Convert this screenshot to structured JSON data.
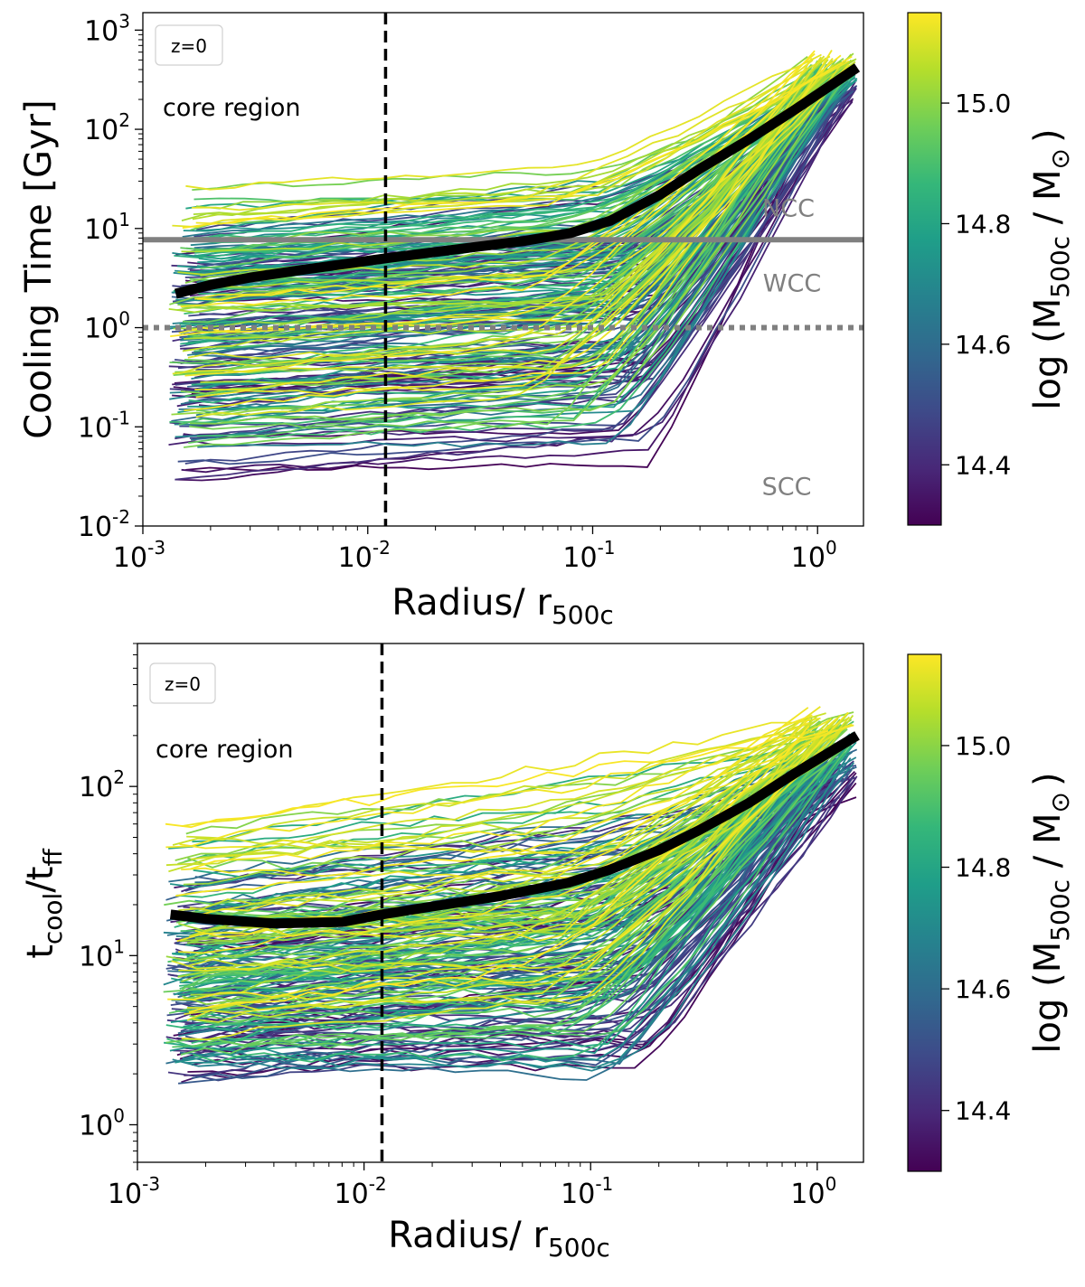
{
  "chart_data": [
    {
      "type": "line",
      "panel": "top",
      "ylabel": "Cooling Time [Gyr]",
      "xlabel_main": "Radius/ r",
      "xlabel_sub": "500c",
      "xscale": "log",
      "yscale": "log",
      "xlim": [
        0.001,
        1.6
      ],
      "ylim": [
        0.01,
        1500
      ],
      "x_ticks": [
        {
          "base": "10",
          "exp": "-3",
          "value": 0.001
        },
        {
          "base": "10",
          "exp": "-2",
          "value": 0.01
        },
        {
          "base": "10",
          "exp": "-1",
          "value": 0.1
        },
        {
          "base": "10",
          "exp": "0",
          "value": 1
        }
      ],
      "y_ticks": [
        {
          "base": "10",
          "exp": "-2",
          "value": 0.01
        },
        {
          "base": "10",
          "exp": "-1",
          "value": 0.1
        },
        {
          "base": "10",
          "exp": "0",
          "value": 1
        },
        {
          "base": "10",
          "exp": "1",
          "value": 10
        },
        {
          "base": "10",
          "exp": "2",
          "value": 100
        },
        {
          "base": "10",
          "exp": "3",
          "value": 1000
        }
      ],
      "legend_text": "z=0",
      "annotation": "core region",
      "region_labels": [
        {
          "text": "NCC",
          "y": 16
        },
        {
          "text": "WCC",
          "y": 2.8
        },
        {
          "text": "SCC",
          "y": 0.025
        }
      ],
      "hlines": [
        {
          "y": 7.7,
          "style": "solid",
          "color": "#808080"
        },
        {
          "y": 1.0,
          "style": "dotted",
          "color": "#808080"
        }
      ],
      "vline_x": 0.012,
      "median_line": {
        "x": [
          0.0014,
          0.002,
          0.003,
          0.005,
          0.008,
          0.012,
          0.02,
          0.03,
          0.05,
          0.08,
          0.12,
          0.2,
          0.3,
          0.5,
          0.8,
          1.5
        ],
        "y": [
          2.2,
          2.7,
          3.2,
          3.8,
          4.4,
          5.0,
          5.8,
          6.5,
          7.5,
          9.0,
          12,
          22,
          40,
          80,
          160,
          420
        ]
      },
      "profiles": {
        "count": 230,
        "x_start_range": [
          0.0013,
          0.0018
        ],
        "x_end_range": [
          0.9,
          1.5
        ],
        "inner_log_range": [
          -1.7,
          1.4
        ],
        "outer_log_range": [
          2.25,
          2.8
        ],
        "bend_x_range": [
          0.04,
          0.2
        ],
        "inner_slope_range": [
          0.0,
          0.3
        ]
      },
      "colorbar": {
        "label_pre": "log (M",
        "label_sub": "500c",
        "label_mid": " / M",
        "label_sub2": "⊙",
        "label_post": ")",
        "range": [
          14.3,
          15.15
        ],
        "ticks": [
          "14.4",
          "14.6",
          "14.8",
          "15.0"
        ],
        "tick_values": [
          14.4,
          14.6,
          14.8,
          15.0
        ],
        "colormap": [
          "#440154",
          "#482878",
          "#3e4a89",
          "#31688e",
          "#26828e",
          "#1f9e89",
          "#35b779",
          "#6ece58",
          "#b5de2b",
          "#fde725"
        ]
      }
    },
    {
      "type": "line",
      "panel": "bottom",
      "ylabel_main": "t",
      "ylabel_sub1": "cool",
      "ylabel_mid": "/t",
      "ylabel_sub2": "ff",
      "xlabel_main": "Radius/ r",
      "xlabel_sub": "500c",
      "xscale": "log",
      "yscale": "log",
      "xlim": [
        0.001,
        1.6
      ],
      "ylim": [
        0.6,
        700
      ],
      "x_ticks": [
        {
          "base": "10",
          "exp": "-3",
          "value": 0.001
        },
        {
          "base": "10",
          "exp": "-2",
          "value": 0.01
        },
        {
          "base": "10",
          "exp": "-1",
          "value": 0.1
        },
        {
          "base": "10",
          "exp": "0",
          "value": 1
        }
      ],
      "y_ticks": [
        {
          "base": "10",
          "exp": "0",
          "value": 1
        },
        {
          "base": "10",
          "exp": "1",
          "value": 10
        },
        {
          "base": "10",
          "exp": "2",
          "value": 100
        }
      ],
      "legend_text": "z=0",
      "annotation": "core region",
      "vline_x": 0.012,
      "median_line": {
        "x": [
          0.0014,
          0.002,
          0.004,
          0.008,
          0.012,
          0.02,
          0.04,
          0.08,
          0.12,
          0.2,
          0.3,
          0.5,
          0.8,
          1.5
        ],
        "y": [
          17.5,
          16.5,
          15.5,
          15.8,
          17.5,
          19.5,
          22.5,
          27,
          32,
          42,
          55,
          80,
          120,
          200
        ]
      },
      "profiles": {
        "count": 230,
        "x_start_range": [
          0.0013,
          0.0018
        ],
        "x_end_range": [
          0.9,
          1.5
        ],
        "inner_log_range": [
          0.1,
          1.75
        ],
        "outer_log_range": [
          1.95,
          2.5
        ],
        "bend_x_range": [
          0.04,
          0.2
        ],
        "inner_slope_range": [
          -0.05,
          0.25
        ]
      },
      "colorbar": {
        "label_pre": "log (M",
        "label_sub": "500c",
        "label_mid": " / M",
        "label_sub2": "⊙",
        "label_post": ")",
        "range": [
          14.3,
          15.15
        ],
        "ticks": [
          "14.4",
          "14.6",
          "14.8",
          "15.0"
        ],
        "tick_values": [
          14.4,
          14.6,
          14.8,
          15.0
        ],
        "colormap": [
          "#440154",
          "#482878",
          "#3e4a89",
          "#31688e",
          "#26828e",
          "#1f9e89",
          "#35b779",
          "#6ece58",
          "#b5de2b",
          "#fde725"
        ]
      }
    }
  ]
}
